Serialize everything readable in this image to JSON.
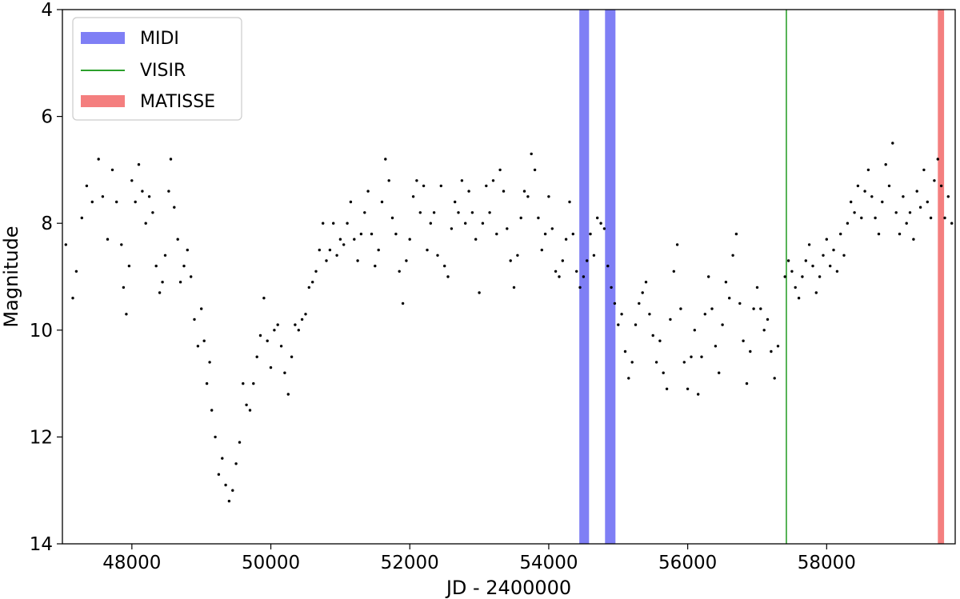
{
  "chart_data": {
    "type": "scatter",
    "title": "",
    "xlabel": "JD - 2400000",
    "ylabel": "Magnitude",
    "xlim": [
      47000,
      59850
    ],
    "ylim": [
      14,
      4
    ],
    "y_inverted": true,
    "grid": false,
    "legend_position": "top-left",
    "x_ticks": [
      48000,
      50000,
      52000,
      54000,
      56000,
      58000
    ],
    "y_ticks": [
      4,
      6,
      8,
      10,
      12,
      14
    ],
    "x_tick_labels": [
      "48000",
      "50000",
      "52000",
      "54000",
      "56000",
      "58000"
    ],
    "y_tick_labels": [
      "4",
      "6",
      "8",
      "10",
      "12",
      "14"
    ],
    "observation_bands": [
      {
        "name": "MIDI",
        "color": "#7f7ff5",
        "style": "band",
        "ranges": [
          [
            54440,
            54580
          ],
          [
            54810,
            54960
          ]
        ]
      },
      {
        "name": "VISIR",
        "color": "#2ca02c",
        "style": "line",
        "x": [
          57420
        ]
      },
      {
        "name": "MATISSE",
        "color": "#f47f7f",
        "style": "band",
        "ranges": [
          [
            59600,
            59690
          ]
        ]
      }
    ],
    "light_curve": {
      "marker_color": "#000000",
      "points": [
        [
          47050,
          8.4
        ],
        [
          47150,
          9.4
        ],
        [
          47200,
          8.9
        ],
        [
          47280,
          7.9
        ],
        [
          47350,
          7.3
        ],
        [
          47430,
          7.6
        ],
        [
          47520,
          6.8
        ],
        [
          47580,
          7.5
        ],
        [
          47650,
          8.3
        ],
        [
          47720,
          7.0
        ],
        [
          47780,
          7.6
        ],
        [
          47850,
          8.4
        ],
        [
          47880,
          9.2
        ],
        [
          47920,
          9.7
        ],
        [
          47960,
          8.8
        ],
        [
          48000,
          7.2
        ],
        [
          48050,
          7.6
        ],
        [
          48100,
          6.9
        ],
        [
          48150,
          7.4
        ],
        [
          48200,
          8.0
        ],
        [
          48250,
          7.5
        ],
        [
          48300,
          7.8
        ],
        [
          48350,
          8.8
        ],
        [
          48400,
          9.3
        ],
        [
          48440,
          9.1
        ],
        [
          48480,
          8.6
        ],
        [
          48530,
          7.4
        ],
        [
          48560,
          6.8
        ],
        [
          48610,
          7.7
        ],
        [
          48660,
          8.3
        ],
        [
          48700,
          9.1
        ],
        [
          48750,
          8.8
        ],
        [
          48800,
          8.5
        ],
        [
          48850,
          9.0
        ],
        [
          48900,
          9.8
        ],
        [
          48950,
          10.3
        ],
        [
          49000,
          9.6
        ],
        [
          49040,
          10.2
        ],
        [
          49080,
          11.0
        ],
        [
          49120,
          10.6
        ],
        [
          49150,
          11.5
        ],
        [
          49200,
          12.0
        ],
        [
          49250,
          12.7
        ],
        [
          49300,
          12.4
        ],
        [
          49350,
          12.9
        ],
        [
          49400,
          13.2
        ],
        [
          49450,
          13.0
        ],
        [
          49500,
          12.5
        ],
        [
          49550,
          12.1
        ],
        [
          49600,
          11.0
        ],
        [
          49650,
          11.4
        ],
        [
          49700,
          11.5
        ],
        [
          49750,
          11.0
        ],
        [
          49800,
          10.5
        ],
        [
          49850,
          10.1
        ],
        [
          49900,
          9.4
        ],
        [
          49950,
          10.2
        ],
        [
          50000,
          10.7
        ],
        [
          50050,
          10.0
        ],
        [
          50100,
          9.9
        ],
        [
          50150,
          10.3
        ],
        [
          50200,
          10.8
        ],
        [
          50250,
          11.2
        ],
        [
          50300,
          10.5
        ],
        [
          50350,
          9.9
        ],
        [
          50400,
          10.0
        ],
        [
          50450,
          9.8
        ],
        [
          50500,
          9.7
        ],
        [
          50550,
          9.2
        ],
        [
          50600,
          9.1
        ],
        [
          50650,
          8.9
        ],
        [
          50700,
          8.5
        ],
        [
          50750,
          8.0
        ],
        [
          50800,
          8.7
        ],
        [
          50850,
          8.5
        ],
        [
          50900,
          8.0
        ],
        [
          50950,
          8.6
        ],
        [
          51000,
          8.3
        ],
        [
          51050,
          8.4
        ],
        [
          51100,
          8.0
        ],
        [
          51150,
          7.6
        ],
        [
          51200,
          8.3
        ],
        [
          51250,
          8.7
        ],
        [
          51300,
          8.2
        ],
        [
          51350,
          7.8
        ],
        [
          51400,
          7.4
        ],
        [
          51450,
          8.2
        ],
        [
          51500,
          8.8
        ],
        [
          51550,
          8.5
        ],
        [
          51600,
          7.6
        ],
        [
          51650,
          6.8
        ],
        [
          51700,
          7.2
        ],
        [
          51750,
          7.9
        ],
        [
          51800,
          8.2
        ],
        [
          51850,
          8.9
        ],
        [
          51900,
          9.5
        ],
        [
          51950,
          8.7
        ],
        [
          52000,
          8.3
        ],
        [
          52050,
          7.5
        ],
        [
          52100,
          7.2
        ],
        [
          52150,
          7.8
        ],
        [
          52200,
          7.3
        ],
        [
          52250,
          8.5
        ],
        [
          52300,
          8.0
        ],
        [
          52350,
          7.8
        ],
        [
          52400,
          8.6
        ],
        [
          52450,
          7.3
        ],
        [
          52500,
          8.8
        ],
        [
          52550,
          9.0
        ],
        [
          52600,
          8.1
        ],
        [
          52650,
          7.6
        ],
        [
          52700,
          7.8
        ],
        [
          52750,
          7.2
        ],
        [
          52800,
          8.0
        ],
        [
          52850,
          7.4
        ],
        [
          52900,
          7.8
        ],
        [
          52950,
          8.3
        ],
        [
          53000,
          9.3
        ],
        [
          53050,
          8.0
        ],
        [
          53100,
          7.3
        ],
        [
          53150,
          7.8
        ],
        [
          53200,
          7.2
        ],
        [
          53250,
          8.2
        ],
        [
          53300,
          7.0
        ],
        [
          53350,
          7.4
        ],
        [
          53400,
          8.1
        ],
        [
          53450,
          8.7
        ],
        [
          53500,
          9.2
        ],
        [
          53550,
          8.6
        ],
        [
          53600,
          7.9
        ],
        [
          53650,
          7.4
        ],
        [
          53700,
          7.5
        ],
        [
          53750,
          6.7
        ],
        [
          53800,
          7.0
        ],
        [
          53850,
          7.9
        ],
        [
          53900,
          8.5
        ],
        [
          53950,
          8.2
        ],
        [
          54000,
          7.5
        ],
        [
          54050,
          8.1
        ],
        [
          54100,
          8.9
        ],
        [
          54150,
          9.0
        ],
        [
          54200,
          8.7
        ],
        [
          54250,
          8.3
        ],
        [
          54300,
          7.6
        ],
        [
          54350,
          8.2
        ],
        [
          54400,
          8.9
        ],
        [
          54450,
          9.2
        ],
        [
          54500,
          9.0
        ],
        [
          54550,
          8.7
        ],
        [
          54600,
          8.2
        ],
        [
          54650,
          8.6
        ],
        [
          54700,
          7.9
        ],
        [
          54750,
          8.0
        ],
        [
          54800,
          8.1
        ],
        [
          54850,
          8.8
        ],
        [
          54900,
          9.2
        ],
        [
          54950,
          9.5
        ],
        [
          55000,
          9.9
        ],
        [
          55050,
          9.7
        ],
        [
          55100,
          10.4
        ],
        [
          55150,
          10.9
        ],
        [
          55200,
          10.6
        ],
        [
          55250,
          9.9
        ],
        [
          55300,
          9.5
        ],
        [
          55350,
          9.3
        ],
        [
          55400,
          9.1
        ],
        [
          55450,
          9.7
        ],
        [
          55500,
          10.1
        ],
        [
          55550,
          10.6
        ],
        [
          55600,
          10.2
        ],
        [
          55650,
          10.8
        ],
        [
          55700,
          11.1
        ],
        [
          55750,
          9.8
        ],
        [
          55800,
          8.9
        ],
        [
          55850,
          8.4
        ],
        [
          55900,
          9.6
        ],
        [
          55950,
          10.6
        ],
        [
          56000,
          11.1
        ],
        [
          56050,
          10.5
        ],
        [
          56100,
          10.0
        ],
        [
          56150,
          11.2
        ],
        [
          56200,
          10.5
        ],
        [
          56250,
          9.7
        ],
        [
          56300,
          9.0
        ],
        [
          56350,
          9.6
        ],
        [
          56400,
          10.3
        ],
        [
          56450,
          10.8
        ],
        [
          56500,
          9.9
        ],
        [
          56550,
          9.1
        ],
        [
          56600,
          9.4
        ],
        [
          56650,
          8.6
        ],
        [
          56700,
          8.2
        ],
        [
          56750,
          9.5
        ],
        [
          56800,
          10.2
        ],
        [
          56850,
          11.0
        ],
        [
          56900,
          10.4
        ],
        [
          56950,
          9.6
        ],
        [
          57000,
          9.2
        ],
        [
          57050,
          9.6
        ],
        [
          57100,
          10.0
        ],
        [
          57150,
          9.8
        ],
        [
          57200,
          10.4
        ],
        [
          57250,
          10.9
        ],
        [
          57300,
          10.3
        ],
        [
          57400,
          9.0
        ],
        [
          57450,
          8.7
        ],
        [
          57500,
          8.9
        ],
        [
          57550,
          9.2
        ],
        [
          57600,
          9.4
        ],
        [
          57650,
          9.0
        ],
        [
          57700,
          8.7
        ],
        [
          57750,
          8.4
        ],
        [
          57800,
          8.8
        ],
        [
          57850,
          9.3
        ],
        [
          57900,
          9.0
        ],
        [
          57950,
          8.6
        ],
        [
          58000,
          8.3
        ],
        [
          58050,
          8.8
        ],
        [
          58100,
          8.5
        ],
        [
          58150,
          8.9
        ],
        [
          58200,
          8.2
        ],
        [
          58250,
          8.6
        ],
        [
          58300,
          8.0
        ],
        [
          58350,
          7.6
        ],
        [
          58400,
          7.8
        ],
        [
          58450,
          7.3
        ],
        [
          58500,
          7.9
        ],
        [
          58550,
          7.4
        ],
        [
          58600,
          7.0
        ],
        [
          58650,
          7.5
        ],
        [
          58700,
          7.9
        ],
        [
          58750,
          8.2
        ],
        [
          58800,
          7.6
        ],
        [
          58850,
          6.9
        ],
        [
          58900,
          7.3
        ],
        [
          58950,
          6.5
        ],
        [
          59000,
          7.8
        ],
        [
          59050,
          8.2
        ],
        [
          59100,
          7.5
        ],
        [
          59150,
          8.0
        ],
        [
          59200,
          7.8
        ],
        [
          59250,
          8.3
        ],
        [
          59300,
          7.4
        ],
        [
          59350,
          7.7
        ],
        [
          59400,
          7.0
        ],
        [
          59450,
          7.6
        ],
        [
          59500,
          7.9
        ],
        [
          59550,
          7.2
        ],
        [
          59600,
          6.8
        ],
        [
          59650,
          7.3
        ],
        [
          59700,
          7.9
        ],
        [
          59750,
          7.5
        ],
        [
          59800,
          8.0
        ]
      ]
    }
  }
}
